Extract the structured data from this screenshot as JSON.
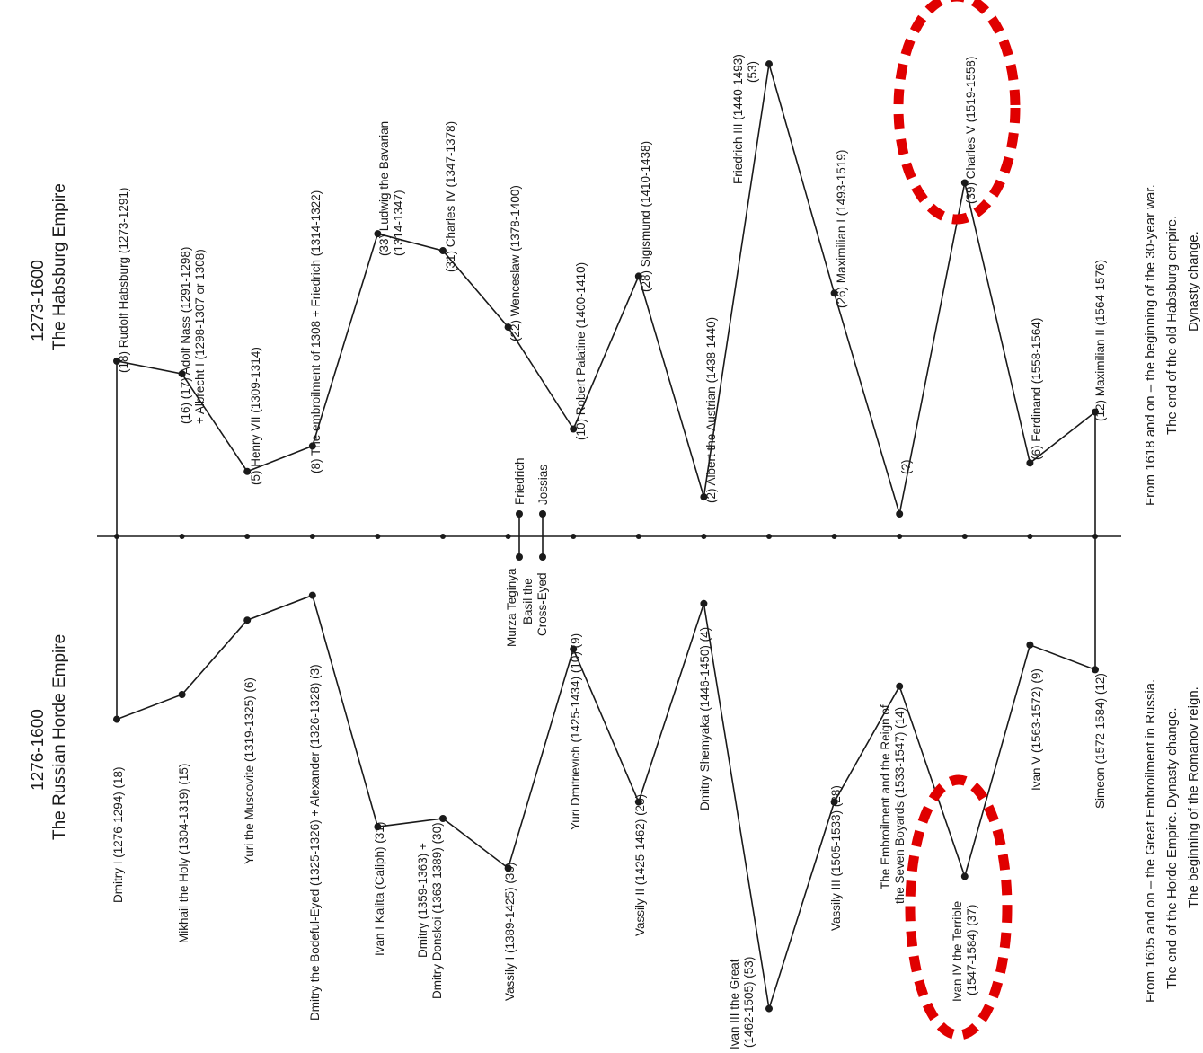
{
  "top": {
    "title_line1": "1273-1600",
    "title_line2": "The Habsburg Empire",
    "labels": [
      "(18) Rudolf Habsburg (1273-1291)",
      "(16) (17) Adolf Nass (1291-1298)",
      "+ Albrecht I (1298-1307 or 1308)",
      "(5) Henry VII (1309-1314)",
      "(8) The embroilment of 1308 + Friedrich (1314-1322)",
      "(33) Ludwig the Bavarian",
      "(1314-1347)",
      "(31) Charles IV (1347-1378)",
      "(22) Wenceslaw (1378-1400)",
      "(10) Robert Palatine (1400-1410)",
      "(28) Sigismund (1410-1438)",
      "(2) Albert the Austrian (1438-1440)",
      "Friedrich III (1440-1493)",
      "(53)",
      "(26) Maximilian I (1493-1519)",
      "(?)",
      "(39) Charles V (1519-1558)",
      "(6) Ferdinand (1558-1564)",
      "(12) Maximilian II (1564-1576)",
      "Friedrich",
      "Jossias"
    ],
    "note": [
      "From 1618 and on – the beginning of the 30-year war.",
      "The end of the old Habsburg empire.",
      "Dynasty change."
    ]
  },
  "bottom": {
    "title_line1": "1276-1600",
    "title_line2": "The Russian Horde Empire",
    "labels": [
      "Dmitry I (1276-1294) (18)",
      "Mikhail the Holy (1304-1319) (15)",
      "Yuri the Muscovite (1319-1325) (6)",
      "Dmitry the Bodeful-Eyed (1325-1326) + Alexander (1326-1328) (3)",
      "Ivan I Kalita (Caliph) (31)",
      "Dmitry (1359-1363) +",
      "Dmitry Donskoi (1363-1389) (30)",
      "Vassily I (1389-1425) (36)",
      "Yuri Dmitrievich (1425-1434) (10) (9)",
      "Vassily II (1425-1462) (28)",
      "Dmitry Shemyaka (1446-1450) (4)",
      "Ivan III the Great",
      "(1462-1505) (53)",
      "Vassily III (1505-1533) (28)",
      "The Embroilment and the Reign of",
      "the Seven Boyards (1533-1547) (14)",
      "Ivan IV the Terrible",
      "(1547-1584) (37)",
      "Ivan V (1563-1572) (9)",
      "Simeon (1572-1584) (12)",
      "Murza Teginya",
      "Basil the",
      "Cross-Eyed"
    ],
    "note": [
      "From 1605 and on – the Great Embroilment in Russia.",
      "The end of the Horde Empire. Dynasty change.",
      "The beginning of the Romanov reign."
    ]
  },
  "series": {
    "habsburg_durations": [
      18,
      16.5,
      5,
      8,
      33,
      31,
      22,
      10,
      28,
      2,
      53,
      26,
      0,
      39,
      6,
      12
    ],
    "horde_durations": [
      18,
      15,
      6,
      3,
      31,
      30,
      36,
      9.5,
      28,
      4,
      53,
      28,
      14,
      37,
      9,
      12
    ]
  },
  "colors": {
    "line": "#1a1a1a",
    "highlight": "#e00000"
  }
}
